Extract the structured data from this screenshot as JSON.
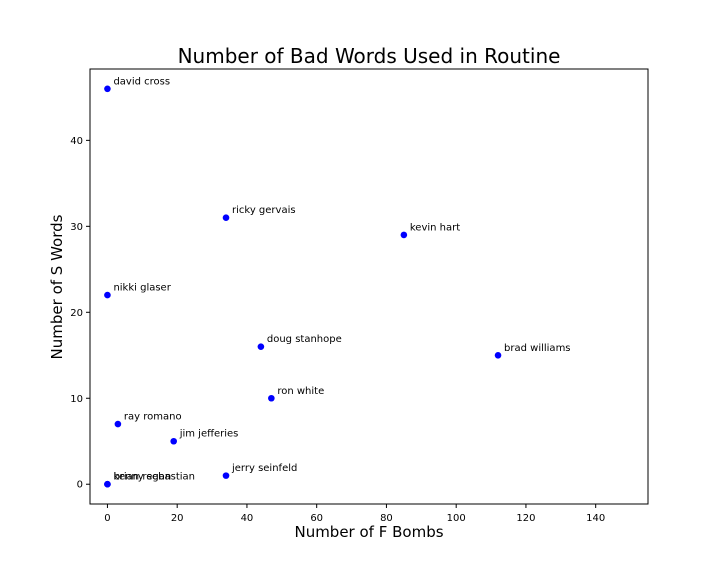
{
  "chart_data": {
    "type": "scatter",
    "title": "Number of Bad Words Used in Routine",
    "xlabel": "Number of F Bombs",
    "ylabel": "Number of S Words",
    "xlim": [
      -5,
      155
    ],
    "ylim": [
      -2.3,
      48.3
    ],
    "xticks": [
      0,
      20,
      40,
      60,
      80,
      100,
      120,
      140
    ],
    "yticks": [
      0,
      10,
      20,
      30,
      40
    ],
    "grid": false,
    "legend": "none",
    "marker_color": "#0000ff",
    "points": [
      {
        "label": "david cross",
        "x": 0,
        "y": 46
      },
      {
        "label": "ricky gervais",
        "x": 34,
        "y": 31
      },
      {
        "label": "kevin hart",
        "x": 85,
        "y": 29
      },
      {
        "label": "nikki glaser",
        "x": 0,
        "y": 22
      },
      {
        "label": "doug stanhope",
        "x": 44,
        "y": 16
      },
      {
        "label": "brad williams",
        "x": 112,
        "y": 15
      },
      {
        "label": "ron white",
        "x": 47,
        "y": 10
      },
      {
        "label": "ray romano",
        "x": 3,
        "y": 7
      },
      {
        "label": "jim jefferies",
        "x": 19,
        "y": 5
      },
      {
        "label": "jerry seinfeld",
        "x": 34,
        "y": 1
      },
      {
        "label": "brian regan",
        "x": 0,
        "y": 0
      },
      {
        "label": "kenny sebastian",
        "x": 0,
        "y": 0
      }
    ]
  }
}
